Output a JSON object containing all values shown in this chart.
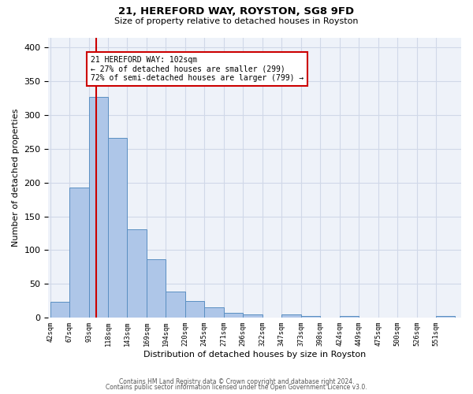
{
  "title1": "21, HEREFORD WAY, ROYSTON, SG8 9FD",
  "title2": "Size of property relative to detached houses in Royston",
  "xlabel": "Distribution of detached houses by size in Royston",
  "ylabel": "Number of detached properties",
  "annotation_line1": "21 HEREFORD WAY: 102sqm",
  "annotation_line2": "← 27% of detached houses are smaller (299)",
  "annotation_line3": "72% of semi-detached houses are larger (799) →",
  "property_size": 102,
  "bar_color": "#aec6e8",
  "bar_edge_color": "#5a8fc2",
  "vline_color": "#cc0000",
  "annotation_box_color": "#cc0000",
  "grid_color": "#d0d8e8",
  "background_color": "#eef2f9",
  "categories": [
    "42sqm",
    "67sqm",
    "93sqm",
    "118sqm",
    "143sqm",
    "169sqm",
    "194sqm",
    "220sqm",
    "245sqm",
    "271sqm",
    "296sqm",
    "322sqm",
    "347sqm",
    "373sqm",
    "398sqm",
    "424sqm",
    "449sqm",
    "475sqm",
    "500sqm",
    "526sqm",
    "551sqm"
  ],
  "values": [
    23,
    193,
    327,
    266,
    131,
    86,
    39,
    25,
    15,
    7,
    5,
    0,
    5,
    3,
    0,
    3,
    0,
    0,
    0,
    0,
    3
  ],
  "bin_edges": [
    42,
    67,
    93,
    118,
    143,
    169,
    194,
    220,
    245,
    271,
    296,
    322,
    347,
    373,
    398,
    424,
    449,
    475,
    500,
    526,
    551,
    576
  ],
  "ylim": [
    0,
    415
  ],
  "yticks": [
    0,
    50,
    100,
    150,
    200,
    250,
    300,
    350,
    400
  ],
  "footer1": "Contains HM Land Registry data © Crown copyright and database right 2024.",
  "footer2": "Contains public sector information licensed under the Open Government Licence v3.0."
}
